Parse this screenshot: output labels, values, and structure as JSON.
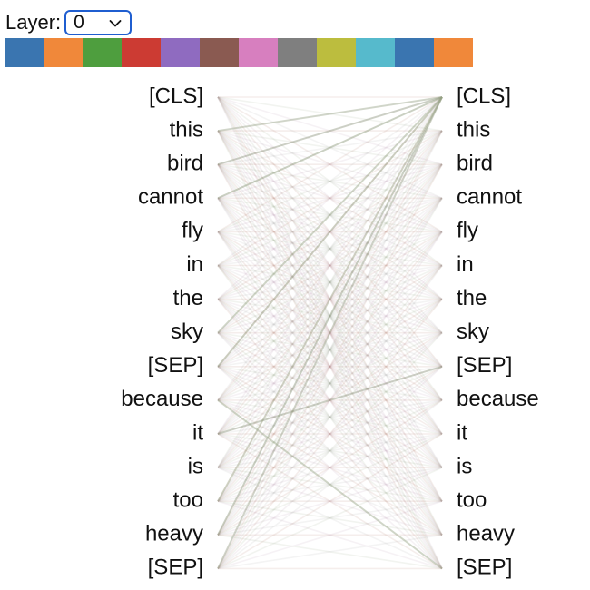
{
  "controls": {
    "layer_label": "Layer:",
    "layer_value": "0",
    "layer_options": [
      "0"
    ]
  },
  "heads": [
    {
      "color": "#3a75b0"
    },
    {
      "color": "#f0883a"
    },
    {
      "color": "#4e9e3e"
    },
    {
      "color": "#cc3b33"
    },
    {
      "color": "#8f6bc0"
    },
    {
      "color": "#8a5a51"
    },
    {
      "color": "#d77fbf"
    },
    {
      "color": "#7f7f7f"
    },
    {
      "color": "#bcbd3e"
    },
    {
      "color": "#56bacc"
    },
    {
      "color": "#3a75b0"
    },
    {
      "color": "#f0883a"
    }
  ],
  "tokens_left": [
    "[CLS]",
    "this",
    "bird",
    "cannot",
    "fly",
    "in",
    "the",
    "sky",
    "[SEP]",
    "because",
    "it",
    "is",
    "too",
    "heavy",
    "[SEP]"
  ],
  "tokens_right": [
    "[CLS]",
    "this",
    "bird",
    "cannot",
    "fly",
    "in",
    "the",
    "sky",
    "[SEP]",
    "because",
    "it",
    "is",
    "too",
    "heavy",
    "[SEP]"
  ],
  "attention_lines": {
    "palette": [
      "#b5796f",
      "#9aa88a",
      "#b89ab0",
      "#a7a7a7"
    ],
    "strong_links": [
      [
        14,
        0
      ],
      [
        13,
        0
      ],
      [
        12,
        0
      ],
      [
        8,
        0
      ],
      [
        1,
        0
      ],
      [
        2,
        0
      ],
      [
        7,
        0
      ],
      [
        10,
        8
      ],
      [
        9,
        14
      ],
      [
        3,
        0
      ]
    ]
  }
}
